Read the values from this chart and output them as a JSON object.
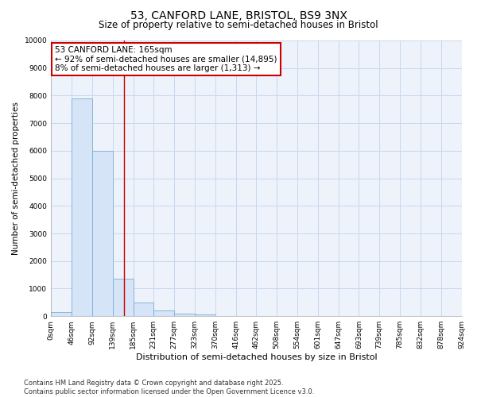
{
  "title1": "53, CANFORD LANE, BRISTOL, BS9 3NX",
  "title2": "Size of property relative to semi-detached houses in Bristol",
  "xlabel": "Distribution of semi-detached houses by size in Bristol",
  "ylabel": "Number of semi-detached properties",
  "bar_values": [
    150,
    7900,
    6000,
    1350,
    500,
    200,
    100,
    50,
    10,
    0,
    0,
    0,
    0,
    0,
    0,
    0,
    0,
    0,
    0,
    0
  ],
  "bin_edges": [
    0,
    46,
    92,
    139,
    185,
    231,
    277,
    323,
    370,
    416,
    462,
    508,
    554,
    601,
    647,
    693,
    739,
    785,
    832,
    878,
    924
  ],
  "bar_color": "#d6e4f7",
  "bar_edge_color": "#7aaed6",
  "grid_color": "#c8d8ef",
  "background_color": "#ffffff",
  "plot_bg_color": "#eef2fa",
  "vline_x": 165,
  "vline_color": "#cc0000",
  "annot_line1": "53 CANFORD LANE: 165sqm",
  "annot_line2": "← 92% of semi-detached houses are smaller (14,895)",
  "annot_line3": "8% of semi-detached houses are larger (1,313) →",
  "annotation_box_color": "#cc0000",
  "ylim": [
    0,
    10000
  ],
  "yticks": [
    0,
    1000,
    2000,
    3000,
    4000,
    5000,
    6000,
    7000,
    8000,
    9000,
    10000
  ],
  "tick_labels": [
    "0sqm",
    "46sqm",
    "92sqm",
    "139sqm",
    "185sqm",
    "231sqm",
    "277sqm",
    "323sqm",
    "370sqm",
    "416sqm",
    "462sqm",
    "508sqm",
    "554sqm",
    "601sqm",
    "647sqm",
    "693sqm",
    "739sqm",
    "785sqm",
    "832sqm",
    "878sqm",
    "924sqm"
  ],
  "footnote": "Contains HM Land Registry data © Crown copyright and database right 2025.\nContains public sector information licensed under the Open Government Licence v3.0.",
  "title1_fontsize": 10,
  "title2_fontsize": 8.5,
  "xlabel_fontsize": 8,
  "ylabel_fontsize": 7.5,
  "tick_fontsize": 6.5,
  "annot_fontsize": 7.5,
  "footnote_fontsize": 6
}
